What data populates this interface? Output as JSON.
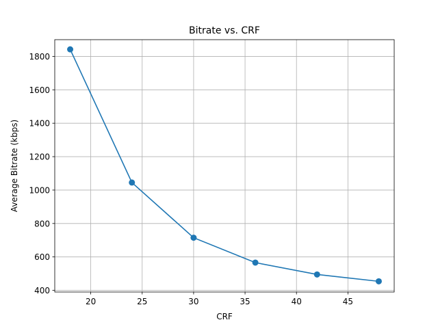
{
  "chart_data": {
    "type": "line",
    "title": "Bitrate vs. CRF",
    "xlabel": "CRF",
    "ylabel": "Average Bitrate (kbps)",
    "xlim": [
      16.5,
      49.5
    ],
    "ylim": [
      390,
      1900
    ],
    "xticks": [
      20,
      25,
      30,
      35,
      40,
      45
    ],
    "yticks": [
      400,
      600,
      800,
      1000,
      1200,
      1400,
      1600,
      1800
    ],
    "grid": true,
    "series": [
      {
        "color": "#1f77b4",
        "marker": "circle",
        "x": [
          18,
          24,
          30,
          36,
          42,
          48
        ],
        "y": [
          1842,
          1045,
          715,
          566,
          495,
          454
        ]
      }
    ]
  }
}
